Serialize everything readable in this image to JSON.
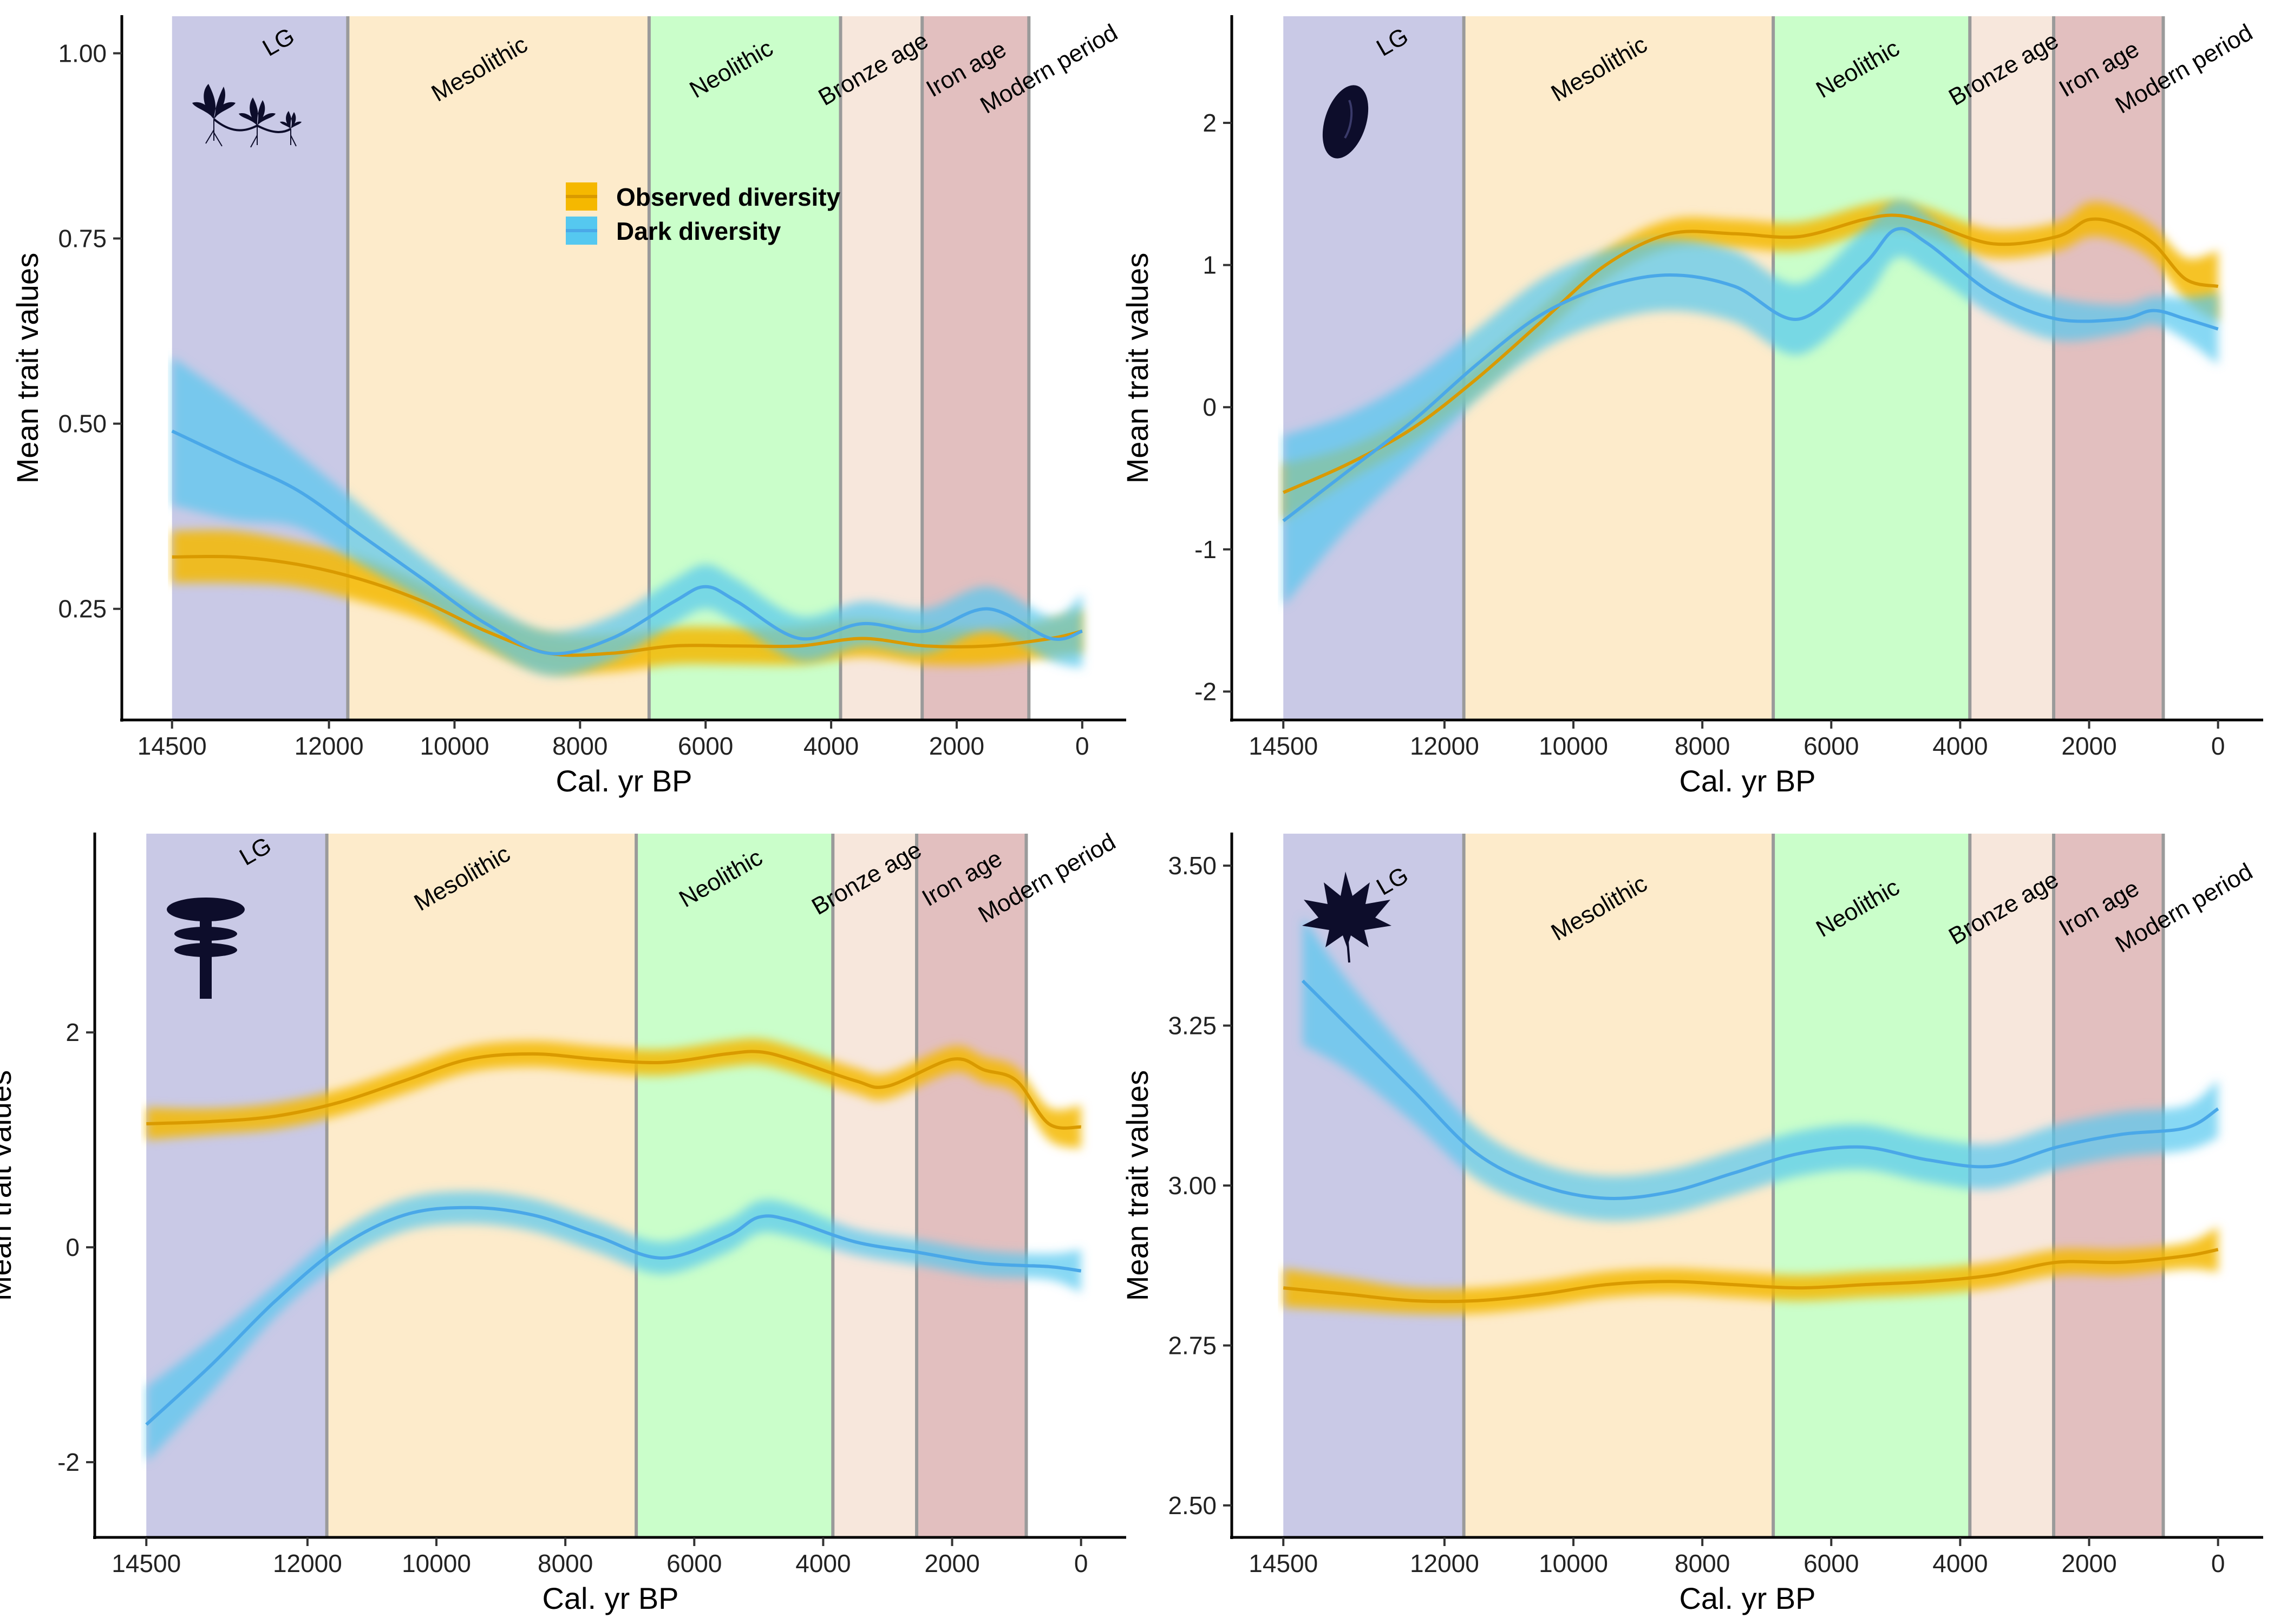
{
  "colors": {
    "observed": "#F5B800",
    "observed_line": "#D99A00",
    "dark": "#55C8F0",
    "dark_line": "#4AA8E8",
    "overlap": "#78DCC8",
    "boundary": "#9A9A9A",
    "icon": "#0D0D2B"
  },
  "periods": [
    {
      "name": "LG",
      "start": 14500,
      "end": 11700,
      "color": "#C9C9E6"
    },
    {
      "name": "Mesolithic",
      "start": 11700,
      "end": 6900,
      "color": "#FDEBCB"
    },
    {
      "name": "Neolithic",
      "start": 6900,
      "end": 3850,
      "color": "#CAFECA"
    },
    {
      "name": "Bronze age",
      "start": 3850,
      "end": 2550,
      "color": "#F7E7DC"
    },
    {
      "name": "Iron age",
      "start": 2550,
      "end": 850,
      "color": "#E2BFBF"
    },
    {
      "name": "Modern period",
      "start": 850,
      "end": 0,
      "color": "#FFFFFF"
    }
  ],
  "legend": {
    "observed_label": "Observed diversity",
    "dark_label": "Dark diversity"
  },
  "chart_data": [
    {
      "type": "line",
      "panel": "top-left",
      "icon": "plant-clonal-icon",
      "xlabel": "Cal. yr BP",
      "ylabel": "Mean trait values",
      "xlim": [
        15300,
        -700
      ],
      "ylim": [
        0.1,
        1.05
      ],
      "xticks": [
        14500,
        12000,
        10000,
        8000,
        6000,
        4000,
        2000,
        0
      ],
      "yticks": [
        0.25,
        0.5,
        0.75,
        1.0
      ],
      "ytick_labels": [
        "0.25",
        "0.50",
        "0.75",
        "1.00"
      ],
      "legend_position": "upper-center",
      "series": [
        {
          "name": "Observed diversity",
          "x": [
            14500,
            13500,
            12500,
            11500,
            10500,
            9500,
            8500,
            7500,
            6500,
            5500,
            4500,
            3500,
            2500,
            1500,
            500,
            0
          ],
          "y": [
            0.32,
            0.32,
            0.31,
            0.29,
            0.26,
            0.22,
            0.19,
            0.19,
            0.2,
            0.2,
            0.2,
            0.21,
            0.2,
            0.2,
            0.21,
            0.22
          ],
          "band": [
            0.035,
            0.035,
            0.03,
            0.03,
            0.025,
            0.025,
            0.025,
            0.025,
            0.025,
            0.025,
            0.025,
            0.025,
            0.025,
            0.025,
            0.025,
            0.03
          ]
        },
        {
          "name": "Dark diversity",
          "x": [
            14500,
            13500,
            12500,
            11500,
            10500,
            9500,
            8500,
            7500,
            6500,
            6000,
            5500,
            4500,
            3500,
            2500,
            1500,
            500,
            0
          ],
          "y": [
            0.49,
            0.45,
            0.41,
            0.35,
            0.29,
            0.23,
            0.19,
            0.21,
            0.26,
            0.28,
            0.26,
            0.21,
            0.23,
            0.22,
            0.25,
            0.21,
            0.22
          ],
          "band": [
            0.1,
            0.08,
            0.05,
            0.04,
            0.03,
            0.03,
            0.03,
            0.03,
            0.03,
            0.03,
            0.03,
            0.03,
            0.03,
            0.03,
            0.03,
            0.03,
            0.05
          ]
        }
      ]
    },
    {
      "type": "line",
      "panel": "top-right",
      "icon": "seed-icon",
      "xlabel": "Cal. yr BP",
      "ylabel": "Mean trait values",
      "xlim": [
        15300,
        -700
      ],
      "ylim": [
        -2.2,
        2.75
      ],
      "xticks": [
        14500,
        12000,
        10000,
        8000,
        6000,
        4000,
        2000,
        0
      ],
      "yticks": [
        -2,
        -1,
        0,
        1,
        2
      ],
      "ytick_labels": [
        "-2",
        "-1",
        "0",
        "1",
        "2"
      ],
      "series": [
        {
          "name": "Observed diversity",
          "x": [
            14500,
            13500,
            12500,
            11500,
            10500,
            9500,
            8500,
            7500,
            6500,
            5500,
            5000,
            4500,
            3500,
            2500,
            2000,
            1500,
            1000,
            500,
            0
          ],
          "y": [
            -0.6,
            -0.4,
            -0.15,
            0.2,
            0.6,
            1.0,
            1.22,
            1.22,
            1.2,
            1.32,
            1.35,
            1.3,
            1.15,
            1.2,
            1.32,
            1.28,
            1.15,
            0.9,
            0.85
          ],
          "band": [
            0.2,
            0.12,
            0.1,
            0.1,
            0.1,
            0.1,
            0.1,
            0.1,
            0.1,
            0.1,
            0.1,
            0.1,
            0.1,
            0.1,
            0.12,
            0.12,
            0.12,
            0.15,
            0.25
          ]
        },
        {
          "name": "Dark diversity",
          "x": [
            14500,
            13500,
            12500,
            11500,
            10500,
            9500,
            8500,
            7500,
            6500,
            5500,
            5000,
            4500,
            3500,
            2500,
            1500,
            1000,
            500,
            0
          ],
          "y": [
            -0.8,
            -0.45,
            -0.1,
            0.3,
            0.65,
            0.85,
            0.93,
            0.85,
            0.62,
            1.0,
            1.25,
            1.15,
            0.8,
            0.62,
            0.62,
            0.68,
            0.62,
            0.55
          ],
          "band": [
            0.6,
            0.4,
            0.3,
            0.25,
            0.25,
            0.25,
            0.25,
            0.25,
            0.25,
            0.25,
            0.2,
            0.2,
            0.15,
            0.15,
            0.1,
            0.1,
            0.15,
            0.25
          ]
        }
      ]
    },
    {
      "type": "line",
      "panel": "bottom-left",
      "icon": "plant-height-icon",
      "xlabel": "Cal. yr BP",
      "ylabel": "Mean trait values",
      "xlim": [
        15300,
        -700
      ],
      "ylim": [
        -2.7,
        3.85
      ],
      "xticks": [
        14500,
        12000,
        10000,
        8000,
        6000,
        4000,
        2000,
        0
      ],
      "yticks": [
        -2,
        0,
        2
      ],
      "ytick_labels": [
        "-2",
        "0",
        "2"
      ],
      "series": [
        {
          "name": "Observed diversity",
          "x": [
            14500,
            13500,
            12500,
            11500,
            10500,
            9500,
            8500,
            7500,
            6500,
            5500,
            5000,
            4500,
            3500,
            3000,
            2000,
            1500,
            1000,
            500,
            0
          ],
          "y": [
            1.15,
            1.17,
            1.22,
            1.35,
            1.55,
            1.75,
            1.8,
            1.75,
            1.72,
            1.8,
            1.82,
            1.75,
            1.55,
            1.5,
            1.75,
            1.65,
            1.55,
            1.15,
            1.12
          ],
          "band": [
            0.15,
            0.12,
            0.12,
            0.12,
            0.12,
            0.12,
            0.12,
            0.12,
            0.12,
            0.12,
            0.12,
            0.12,
            0.12,
            0.12,
            0.12,
            0.12,
            0.12,
            0.15,
            0.2
          ]
        },
        {
          "name": "Dark diversity",
          "x": [
            14500,
            13500,
            12500,
            11500,
            10500,
            9500,
            8500,
            7500,
            6500,
            5500,
            5000,
            4500,
            3500,
            2500,
            1500,
            500,
            0
          ],
          "y": [
            -1.65,
            -1.1,
            -0.5,
            0.0,
            0.3,
            0.37,
            0.3,
            0.1,
            -0.1,
            0.1,
            0.28,
            0.25,
            0.05,
            -0.05,
            -0.15,
            -0.18,
            -0.22
          ],
          "band": [
            0.35,
            0.25,
            0.15,
            0.15,
            0.15,
            0.15,
            0.15,
            0.15,
            0.15,
            0.15,
            0.15,
            0.15,
            0.12,
            0.12,
            0.12,
            0.12,
            0.2
          ]
        }
      ]
    },
    {
      "type": "line",
      "panel": "bottom-right",
      "icon": "leaf-icon",
      "xlabel": "Cal. yr BP",
      "ylabel": "Mean trait values",
      "xlim": [
        15300,
        -700
      ],
      "ylim": [
        2.45,
        3.55
      ],
      "xticks": [
        14500,
        12000,
        10000,
        8000,
        6000,
        4000,
        2000,
        0
      ],
      "yticks": [
        2.5,
        2.75,
        3.0,
        3.25,
        3.5
      ],
      "ytick_labels": [
        "2.50",
        "2.75",
        "3.00",
        "3.25",
        "3.50"
      ],
      "series": [
        {
          "name": "Observed diversity",
          "x": [
            14500,
            13500,
            12500,
            11500,
            10500,
            9500,
            8500,
            7500,
            6500,
            5500,
            4500,
            3500,
            2500,
            1500,
            500,
            0
          ],
          "y": [
            2.84,
            2.83,
            2.82,
            2.82,
            2.83,
            2.845,
            2.85,
            2.845,
            2.84,
            2.845,
            2.85,
            2.86,
            2.88,
            2.88,
            2.89,
            2.9
          ],
          "band": [
            0.03,
            0.025,
            0.02,
            0.02,
            0.02,
            0.02,
            0.02,
            0.02,
            0.02,
            0.02,
            0.02,
            0.02,
            0.02,
            0.02,
            0.02,
            0.035
          ]
        },
        {
          "name": "Dark diversity",
          "x": [
            14200,
            13500,
            12500,
            11500,
            10500,
            9500,
            8500,
            7500,
            6500,
            5500,
            4500,
            3500,
            2500,
            1500,
            500,
            0
          ],
          "y": [
            3.32,
            3.25,
            3.15,
            3.05,
            3.0,
            2.98,
            2.99,
            3.02,
            3.05,
            3.06,
            3.04,
            3.03,
            3.06,
            3.08,
            3.09,
            3.12
          ],
          "band": [
            0.1,
            0.07,
            0.05,
            0.04,
            0.035,
            0.035,
            0.035,
            0.035,
            0.035,
            0.035,
            0.035,
            0.035,
            0.035,
            0.035,
            0.035,
            0.045
          ]
        }
      ]
    }
  ]
}
